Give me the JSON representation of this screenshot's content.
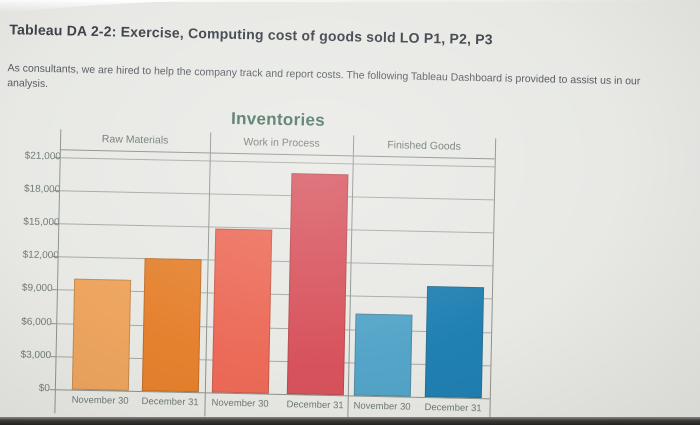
{
  "page": {
    "title": "Tableau DA 2-2: Exercise, Computing cost of goods sold LO P1, P2, P3",
    "intro": "As consultants, we are hired to help the company track and report costs. The following Tableau Dashboard is provided to assist us in our analysis."
  },
  "chart_data": {
    "type": "bar",
    "title": "Inventories",
    "title_color": "#47705f",
    "grid": true,
    "legend": "none",
    "categories": [
      "November 30",
      "December 31"
    ],
    "groups": [
      {
        "label": "Raw Materials",
        "bars": [
          {
            "category": "November 30",
            "value": 10000,
            "color": "#eda55f"
          },
          {
            "category": "December 31",
            "value": 12000,
            "color": "#e5812e"
          }
        ]
      },
      {
        "label": "Work in Process",
        "bars": [
          {
            "category": "November 30",
            "value": 14800,
            "color": "#ec6a57"
          },
          {
            "category": "December 31",
            "value": 20000,
            "color": "#d7525c"
          }
        ]
      },
      {
        "label": "Finished Goods",
        "bars": [
          {
            "category": "November 30",
            "value": 7400,
            "color": "#53a4c8"
          },
          {
            "category": "December 31",
            "value": 10000,
            "color": "#2080b2"
          }
        ]
      }
    ],
    "y_axis": {
      "min": 0,
      "max": 22500,
      "tick_step": 3000,
      "ticks": [
        {
          "label": "$0",
          "value": 0
        },
        {
          "label": "$3,000",
          "value": 3000
        },
        {
          "label": "$6,000",
          "value": 6000
        },
        {
          "label": "$9,000",
          "value": 9000
        },
        {
          "label": "$12,000",
          "value": 12000
        },
        {
          "label": "$15,000",
          "value": 15000
        },
        {
          "label": "$18,000",
          "value": 18000
        },
        {
          "label": "$21,000",
          "value": 21000
        }
      ]
    }
  }
}
